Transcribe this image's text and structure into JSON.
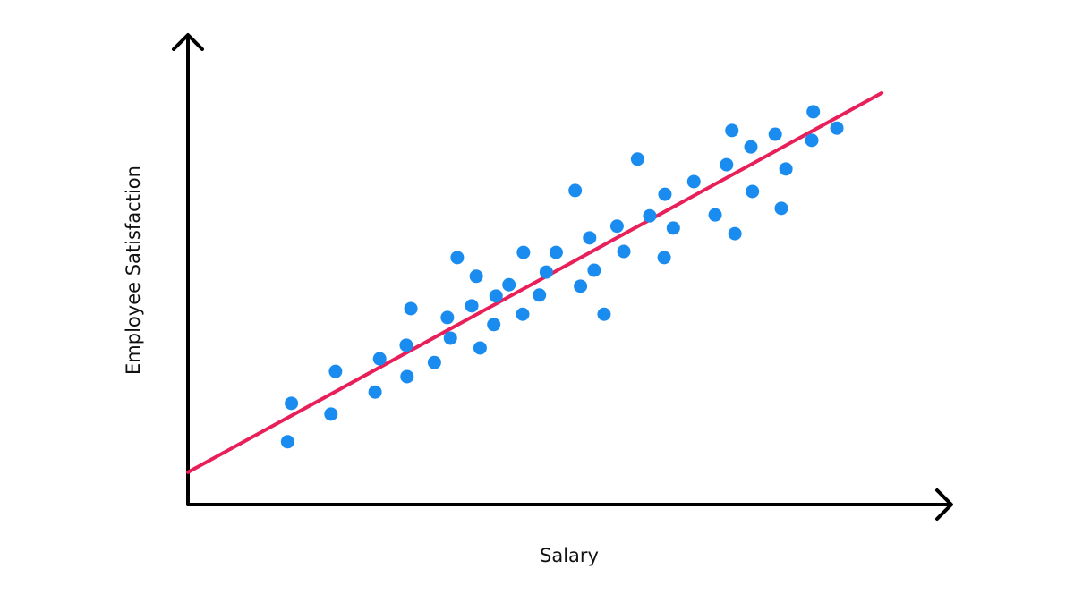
{
  "chart_data": {
    "type": "scatter",
    "x_label": "Salary",
    "y_label": "Employee Satisfaction",
    "xlim": [
      0,
      100
    ],
    "ylim": [
      0,
      100
    ],
    "color": "#1a8cf0",
    "x": [
      13.1,
      13.6,
      18.8,
      19.4,
      24.6,
      25.2,
      28.8,
      28.7,
      29.3,
      32.4,
      34.1,
      34.5,
      35.4,
      37.3,
      37.9,
      38.4,
      40.2,
      40.5,
      42.2,
      44.0,
      44.1,
      46.2,
      47.1,
      48.4,
      50.9,
      51.6,
      52.8,
      53.4,
      54.7,
      56.4,
      57.3,
      59.1,
      60.7,
      62.6,
      62.7,
      63.8,
      66.5,
      69.3,
      70.8,
      71.5,
      71.9,
      74.0,
      74.2,
      77.2,
      78.0,
      78.6,
      82.0,
      82.2,
      85.3
    ],
    "values": [
      13.4,
      21.6,
      19.3,
      28.4,
      24.0,
      31.1,
      27.3,
      34.0,
      41.8,
      30.3,
      39.9,
      35.5,
      52.7,
      42.4,
      48.7,
      33.4,
      38.4,
      44.5,
      46.9,
      40.6,
      53.8,
      44.7,
      49.6,
      53.8,
      67.0,
      46.6,
      56.9,
      50.0,
      40.6,
      59.4,
      54.0,
      73.7,
      61.6,
      52.7,
      66.2,
      59.0,
      68.9,
      61.8,
      72.5,
      79.8,
      57.8,
      76.3,
      66.8,
      79.0,
      63.2,
      71.6,
      77.7,
      83.8,
      80.3
    ],
    "trend_line": {
      "color": "#e8205a",
      "x": [
        0,
        91.2
      ],
      "y": [
        6.9,
        87.8
      ]
    }
  }
}
